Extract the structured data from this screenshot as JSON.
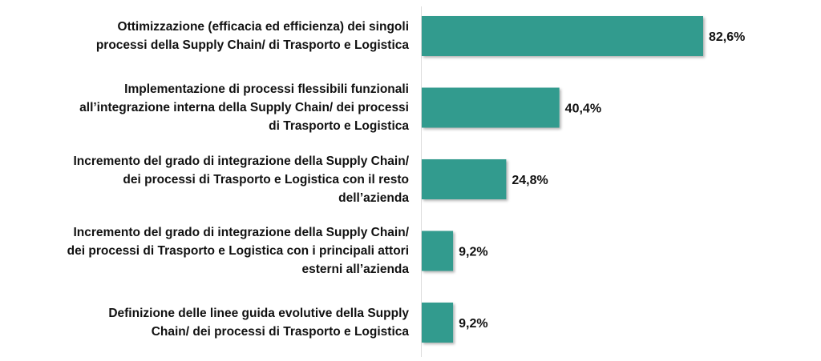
{
  "chart_data": {
    "type": "bar",
    "orientation": "horizontal",
    "title": "",
    "xlabel": "",
    "ylabel": "",
    "xlim": [
      0,
      100
    ],
    "grid": false,
    "bar_color": "#339b8e",
    "categories": [
      "Ottimizzazione (efficacia ed efficienza) dei singoli\nprocessi della Supply Chain/ di Trasporto e Logistica",
      "Implementazione di processi flessibili funzionali\nall’integrazione interna della Supply Chain/ dei processi\ndi Trasporto e Logistica",
      "Incremento del grado di integrazione della Supply Chain/\ndei processi di Trasporto e Logistica con il resto\ndell’azienda",
      "Incremento del grado di integrazione della Supply Chain/\ndei processi di Trasporto e Logistica con i principali attori\nesterni all’azienda",
      "Definizione delle linee guida evolutive della Supply\nChain/ dei processi di Trasporto e Logistica"
    ],
    "values": [
      82.6,
      40.4,
      24.8,
      9.2,
      9.2
    ],
    "data_labels": [
      "82,6%",
      "40,4%",
      "24,8%",
      "9,2%",
      "9,2%"
    ]
  }
}
